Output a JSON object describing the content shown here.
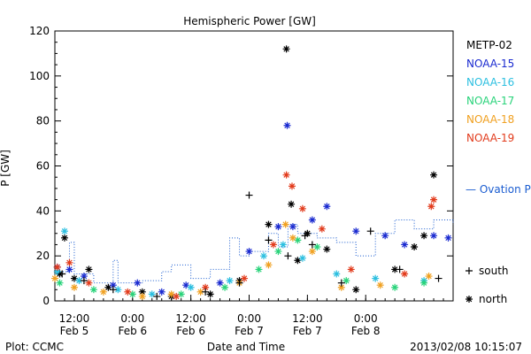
{
  "chart_data": {
    "type": "scatter",
    "title": "Hemispheric Power [GW]",
    "ylabel": "P [GW]",
    "xlabel": "Date and Time",
    "ylim": [
      0,
      120
    ],
    "yticks": [
      0,
      20,
      40,
      60,
      80,
      100,
      120
    ],
    "xlim": [
      "2013-02-05 08:00",
      "2013-02-08 18:00"
    ],
    "xticks": [
      {
        "time": "2013-02-05 12:00",
        "top": "12:00",
        "bottom": "Feb 5"
      },
      {
        "time": "2013-02-06 00:00",
        "top": "0:00",
        "bottom": "Feb 6"
      },
      {
        "time": "2013-02-06 12:00",
        "top": "12:00",
        "bottom": "Feb 6"
      },
      {
        "time": "2013-02-07 00:00",
        "top": "0:00",
        "bottom": "Feb 7"
      },
      {
        "time": "2013-02-07 12:00",
        "top": "12:00",
        "bottom": "Feb 7"
      },
      {
        "time": "2013-02-08 00:00",
        "top": "0:00",
        "bottom": "Feb 8"
      }
    ],
    "legend_placement": "right",
    "series": [
      {
        "name": "METP-02",
        "color": "#000000",
        "points": [
          [
            "2013-02-05 09:00",
            12
          ],
          [
            "2013-02-05 10:00",
            28
          ],
          [
            "2013-02-05 12:00",
            10
          ],
          [
            "2013-02-05 15:00",
            14
          ],
          [
            "2013-02-05 19:00",
            6
          ],
          [
            "2013-02-06 02:00",
            4
          ],
          [
            "2013-02-06 08:00",
            2
          ],
          [
            "2013-02-06 16:00",
            3
          ],
          [
            "2013-02-06 22:00",
            9
          ],
          [
            "2013-02-07 04:00",
            34
          ],
          [
            "2013-02-07 07:40",
            112
          ],
          [
            "2013-02-07 08:40",
            43
          ],
          [
            "2013-02-07 10:00",
            18
          ],
          [
            "2013-02-07 12:00",
            30
          ],
          [
            "2013-02-07 16:00",
            23
          ],
          [
            "2013-02-07 22:00",
            5
          ],
          [
            "2013-02-08 06:00",
            14
          ],
          [
            "2013-02-08 10:00",
            24
          ],
          [
            "2013-02-08 12:00",
            29
          ],
          [
            "2013-02-08 14:00",
            56
          ]
        ]
      },
      {
        "name": "NOAA-15",
        "color": "#1a2ad0",
        "points": [
          [
            "2013-02-05 08:30",
            15
          ],
          [
            "2013-02-05 11:00",
            14
          ],
          [
            "2013-02-05 14:00",
            11
          ],
          [
            "2013-02-05 20:00",
            7
          ],
          [
            "2013-02-06 01:00",
            8
          ],
          [
            "2013-02-06 06:00",
            4
          ],
          [
            "2013-02-06 11:00",
            7
          ],
          [
            "2013-02-06 18:00",
            8
          ],
          [
            "2013-02-07 00:00",
            22
          ],
          [
            "2013-02-07 06:00",
            33
          ],
          [
            "2013-02-07 07:50",
            78
          ],
          [
            "2013-02-07 09:00",
            33
          ],
          [
            "2013-02-07 13:00",
            36
          ],
          [
            "2013-02-07 16:00",
            42
          ],
          [
            "2013-02-07 22:00",
            31
          ],
          [
            "2013-02-08 04:00",
            29
          ],
          [
            "2013-02-08 08:00",
            25
          ],
          [
            "2013-02-08 14:00",
            29
          ],
          [
            "2013-02-08 17:00",
            28
          ]
        ]
      },
      {
        "name": "NOAA-16",
        "color": "#2cbfe0",
        "points": [
          [
            "2013-02-05 08:30",
            13
          ],
          [
            "2013-02-05 10:00",
            31
          ],
          [
            "2013-02-05 13:00",
            9
          ],
          [
            "2013-02-05 21:00",
            5
          ],
          [
            "2013-02-06 04:00",
            3
          ],
          [
            "2013-02-06 12:00",
            6
          ],
          [
            "2013-02-06 20:00",
            9
          ],
          [
            "2013-02-07 03:00",
            20
          ],
          [
            "2013-02-07 07:00",
            25
          ],
          [
            "2013-02-07 11:00",
            19
          ],
          [
            "2013-02-07 18:00",
            12
          ],
          [
            "2013-02-08 02:00",
            10
          ],
          [
            "2013-02-08 12:00",
            9
          ]
        ]
      },
      {
        "name": "NOAA-17",
        "color": "#29d37a",
        "points": [
          [
            "2013-02-05 09:00",
            8
          ],
          [
            "2013-02-05 16:00",
            5
          ],
          [
            "2013-02-06 00:00",
            3
          ],
          [
            "2013-02-06 10:00",
            3
          ],
          [
            "2013-02-06 19:00",
            6
          ],
          [
            "2013-02-07 02:00",
            14
          ],
          [
            "2013-02-07 06:00",
            22
          ],
          [
            "2013-02-07 10:00",
            27
          ],
          [
            "2013-02-07 14:00",
            24
          ],
          [
            "2013-02-07 20:00",
            9
          ],
          [
            "2013-02-08 06:00",
            6
          ],
          [
            "2013-02-08 12:00",
            8
          ]
        ]
      },
      {
        "name": "NOAA-18",
        "color": "#f0a020",
        "points": [
          [
            "2013-02-05 08:00",
            10
          ],
          [
            "2013-02-05 12:00",
            6
          ],
          [
            "2013-02-05 18:00",
            4
          ],
          [
            "2013-02-06 02:00",
            2
          ],
          [
            "2013-02-06 08:00",
            3
          ],
          [
            "2013-02-06 14:00",
            4
          ],
          [
            "2013-02-06 22:00",
            8
          ],
          [
            "2013-02-07 04:00",
            16
          ],
          [
            "2013-02-07 07:30",
            34
          ],
          [
            "2013-02-07 09:00",
            28
          ],
          [
            "2013-02-07 13:00",
            22
          ],
          [
            "2013-02-07 19:00",
            6
          ],
          [
            "2013-02-08 03:00",
            7
          ],
          [
            "2013-02-08 13:00",
            11
          ]
        ]
      },
      {
        "name": "NOAA-19",
        "color": "#e23b1c",
        "points": [
          [
            "2013-02-05 08:30",
            15
          ],
          [
            "2013-02-05 11:00",
            17
          ],
          [
            "2013-02-05 15:00",
            8
          ],
          [
            "2013-02-05 23:00",
            4
          ],
          [
            "2013-02-06 09:00",
            2
          ],
          [
            "2013-02-06 15:00",
            6
          ],
          [
            "2013-02-06 23:00",
            10
          ],
          [
            "2013-02-07 05:00",
            25
          ],
          [
            "2013-02-07 07:40",
            56
          ],
          [
            "2013-02-07 08:50",
            51
          ],
          [
            "2013-02-07 11:00",
            41
          ],
          [
            "2013-02-07 15:00",
            32
          ],
          [
            "2013-02-07 21:00",
            14
          ],
          [
            "2013-02-08 08:00",
            12
          ],
          [
            "2013-02-08 14:00",
            45
          ],
          [
            "2013-02-08 13:30",
            42
          ]
        ]
      }
    ],
    "hemisphere_markers": [
      {
        "symbol": "+",
        "label": "south",
        "points": [
          [
            "2013-02-05 09:30",
            12
          ],
          [
            "2013-02-05 14:00",
            9
          ],
          [
            "2013-02-05 20:00",
            5
          ],
          [
            "2013-02-06 05:00",
            2
          ],
          [
            "2013-02-06 15:00",
            4
          ],
          [
            "2013-02-06 22:00",
            8
          ],
          [
            "2013-02-07 00:00",
            47
          ],
          [
            "2013-02-07 04:00",
            27
          ],
          [
            "2013-02-07 08:00",
            20
          ],
          [
            "2013-02-07 11:30",
            29
          ],
          [
            "2013-02-07 13:00",
            25
          ],
          [
            "2013-02-07 19:00",
            8
          ],
          [
            "2013-02-08 01:00",
            31
          ],
          [
            "2013-02-08 07:00",
            14
          ],
          [
            "2013-02-08 15:00",
            10
          ]
        ]
      },
      {
        "symbol": "*",
        "label": "north",
        "points": []
      }
    ],
    "model": {
      "name": "Ovation Prime HPI",
      "label": "— Ovation Prime HPI",
      "color": "#1a5cd0",
      "style": "dotted-step",
      "points": [
        [
          "2013-02-05 08:00",
          13
        ],
        [
          "2013-02-05 11:00",
          26
        ],
        [
          "2013-02-05 12:00",
          12
        ],
        [
          "2013-02-05 16:00",
          8
        ],
        [
          "2013-02-05 20:00",
          18
        ],
        [
          "2013-02-05 21:00",
          8
        ],
        [
          "2013-02-06 02:00",
          9
        ],
        [
          "2013-02-06 06:00",
          13
        ],
        [
          "2013-02-06 08:00",
          16
        ],
        [
          "2013-02-06 12:00",
          10
        ],
        [
          "2013-02-06 16:00",
          14
        ],
        [
          "2013-02-06 20:00",
          28
        ],
        [
          "2013-02-06 22:00",
          20
        ],
        [
          "2013-02-07 00:00",
          22
        ],
        [
          "2013-02-07 04:00",
          30
        ],
        [
          "2013-02-07 06:00",
          24
        ],
        [
          "2013-02-07 08:00",
          34
        ],
        [
          "2013-02-07 10:00",
          30
        ],
        [
          "2013-02-07 14:00",
          28
        ],
        [
          "2013-02-07 18:00",
          26
        ],
        [
          "2013-02-07 22:00",
          20
        ],
        [
          "2013-02-08 02:00",
          30
        ],
        [
          "2013-02-08 06:00",
          36
        ],
        [
          "2013-02-08 10:00",
          32
        ],
        [
          "2013-02-08 14:00",
          36
        ],
        [
          "2013-02-08 18:00",
          34
        ]
      ]
    }
  },
  "footer": {
    "left": "Plot: CCMC",
    "right": "2013/02/08 10:15:07"
  }
}
